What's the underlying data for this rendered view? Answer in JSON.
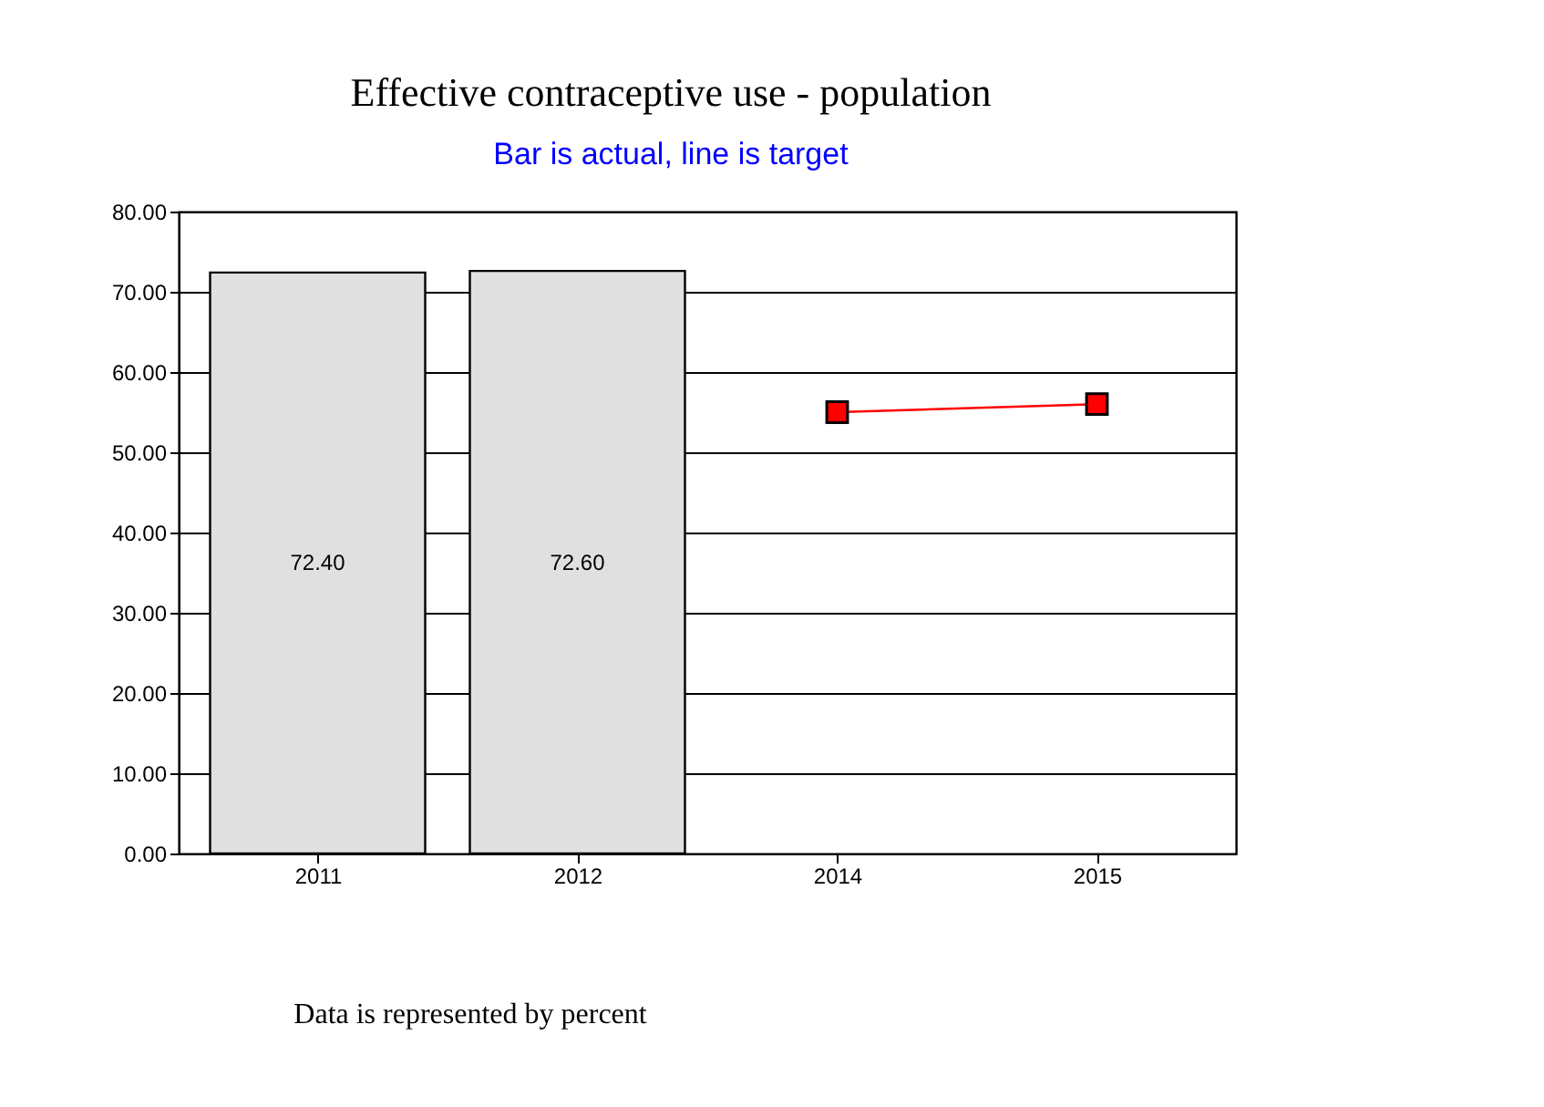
{
  "chart_data": {
    "type": "bar",
    "title": "Effective contraceptive use - population",
    "subtitle": "Bar is actual, line is target",
    "categories": [
      "2011",
      "2012",
      "2014",
      "2015"
    ],
    "series": [
      {
        "color": "#e0e0e0",
        "values": [
          72.4,
          72.6,
          null,
          null
        ],
        "value_labels": [
          "72.40",
          "72.60",
          null,
          null
        ]
      },
      {
        "type": "line",
        "color": "#ff0000",
        "values": [
          null,
          null,
          55,
          56
        ],
        "marker": "square"
      }
    ],
    "ylim": [
      0,
      80
    ],
    "yticks": [
      {
        "value": 0,
        "label": "0.00"
      },
      {
        "value": 10,
        "label": "10.00"
      },
      {
        "value": 20,
        "label": "20.00"
      },
      {
        "value": 30,
        "label": "30.00"
      },
      {
        "value": 40,
        "label": "40.00"
      },
      {
        "value": 50,
        "label": "50.00"
      },
      {
        "value": 60,
        "label": "60.00"
      },
      {
        "value": 70,
        "label": "70.00"
      },
      {
        "value": 80,
        "label": "80.00"
      }
    ],
    "grid": "y",
    "annotations": [
      "Data is represented by percent"
    ]
  }
}
